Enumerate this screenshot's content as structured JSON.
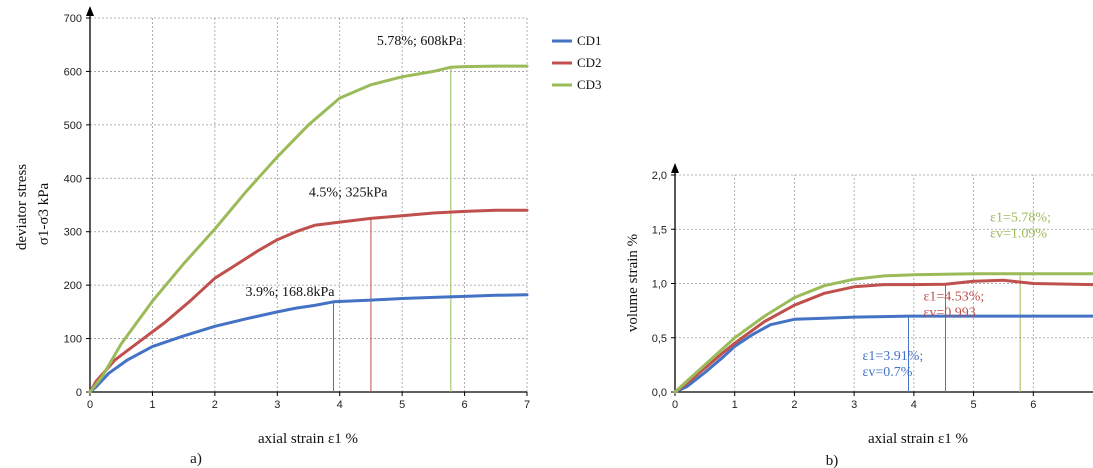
{
  "colors": {
    "CD1": "#4472c4",
    "CD2": "#c0504d",
    "CD3": "#9bbb59"
  },
  "legend": [
    "CD1",
    "CD2",
    "CD3"
  ],
  "chart_data": [
    {
      "type": "line",
      "panel_label": "a)",
      "xlabel": "axial strain  ε1 %",
      "ylabel": "deviator stress",
      "ylabel_sub": "σ1-σ3 kPa",
      "xlim": [
        0,
        7
      ],
      "ylim": [
        0,
        700
      ],
      "xticks": [
        "0",
        "1",
        "2",
        "3",
        "4",
        "5",
        "6",
        "7"
      ],
      "yticks": [
        "0",
        "100",
        "200",
        "300",
        "400",
        "500",
        "600",
        "700"
      ],
      "grid": true,
      "series": [
        {
          "name": "CD1",
          "x": [
            0,
            0.1,
            0.3,
            0.6,
            1.0,
            1.5,
            2.0,
            2.5,
            3.0,
            3.3,
            3.6,
            3.9,
            4.5,
            5.0,
            5.5,
            6.0,
            6.5,
            7.0
          ],
          "y": [
            0,
            10,
            35,
            60,
            85,
            105,
            123,
            137,
            150,
            157,
            162,
            168.8,
            172,
            175,
            177,
            179,
            181,
            182
          ]
        },
        {
          "name": "CD2",
          "x": [
            0,
            0.1,
            0.4,
            0.8,
            1.2,
            1.6,
            2.0,
            2.3,
            2.7,
            3.0,
            3.3,
            3.6,
            4.0,
            4.5,
            5.0,
            5.5,
            6.0,
            6.5,
            7.0
          ],
          "y": [
            0,
            20,
            60,
            95,
            130,
            170,
            213,
            235,
            265,
            285,
            300,
            312,
            318,
            325,
            330,
            335,
            338,
            340,
            340
          ]
        },
        {
          "name": "CD3",
          "x": [
            0,
            0.2,
            0.5,
            1.0,
            1.5,
            2.0,
            2.5,
            3.0,
            3.5,
            4.0,
            4.5,
            5.0,
            5.5,
            5.78,
            6.0,
            6.5,
            7.0
          ],
          "y": [
            0,
            30,
            90,
            170,
            240,
            305,
            375,
            440,
            500,
            550,
            575,
            590,
            600,
            608,
            609,
            610,
            610
          ]
        }
      ],
      "annotations": [
        {
          "text": "3.9%; 168.8kPa",
          "series": "CD1",
          "x": 3.9,
          "y": 168.8
        },
        {
          "text": "4.5%; 325kPa",
          "series": "CD2",
          "x": 4.5,
          "y": 325
        },
        {
          "text": "5.78%; 608kPa",
          "series": "CD3",
          "x": 5.78,
          "y": 608
        }
      ]
    },
    {
      "type": "line",
      "panel_label": "b)",
      "xlabel": "axial strain  ε1 %",
      "ylabel": "volume strain %",
      "xlim": [
        0,
        7
      ],
      "ylim": [
        0,
        2.0
      ],
      "xticks": [
        "0",
        "1",
        "2",
        "3",
        "4",
        "5",
        "6"
      ],
      "yticks": [
        "0,0",
        "0,5",
        "1,0",
        "1,5",
        "2,0"
      ],
      "grid": true,
      "series": [
        {
          "name": "CD1",
          "x": [
            0,
            0.2,
            0.5,
            0.8,
            1.0,
            1.3,
            1.6,
            2.0,
            2.5,
            3.0,
            3.91,
            4.5,
            5.0,
            6.0,
            7.0
          ],
          "y": [
            0,
            0.05,
            0.18,
            0.32,
            0.42,
            0.53,
            0.62,
            0.67,
            0.68,
            0.69,
            0.7,
            0.7,
            0.7,
            0.7,
            0.7
          ]
        },
        {
          "name": "CD2",
          "x": [
            0,
            0.2,
            0.5,
            0.8,
            1.0,
            1.5,
            2.0,
            2.5,
            3.0,
            3.5,
            4.0,
            4.53,
            5.0,
            5.5,
            6.0,
            7.0
          ],
          "y": [
            0,
            0.08,
            0.22,
            0.36,
            0.45,
            0.65,
            0.8,
            0.91,
            0.97,
            0.99,
            0.99,
            0.993,
            1.02,
            1.03,
            1.0,
            0.99
          ]
        },
        {
          "name": "CD3",
          "x": [
            0,
            0.2,
            0.5,
            0.8,
            1.0,
            1.5,
            2.0,
            2.5,
            3.0,
            3.5,
            4.0,
            4.5,
            5.0,
            5.78,
            6.5,
            7.0
          ],
          "y": [
            0,
            0.1,
            0.25,
            0.4,
            0.5,
            0.7,
            0.87,
            0.98,
            1.04,
            1.07,
            1.08,
            1.085,
            1.09,
            1.09,
            1.09,
            1.09
          ]
        }
      ],
      "annotations": [
        {
          "line1": "ε1=3.91%;",
          "line2": "εv=0.7%",
          "series": "CD1",
          "x": 3.91,
          "y": 0.7
        },
        {
          "line1": "ε1=4.53%;",
          "line2": "εv=0.993",
          "series": "CD2",
          "x": 4.53,
          "y": 0.993
        },
        {
          "line1": "ε1=5.78%;",
          "line2": "εv=1.09%",
          "series": "CD3",
          "x": 5.78,
          "y": 1.09
        }
      ]
    }
  ]
}
